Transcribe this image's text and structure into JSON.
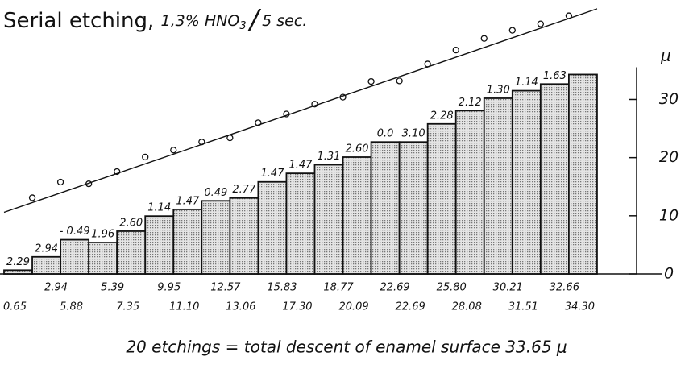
{
  "chart_data": {
    "type": "bar",
    "title": "Serial etching,",
    "title_formula": "1,3% HNO",
    "title_subscript": "3",
    "title_slash": "/",
    "title_time": "5 sec.",
    "y_axis_label": "μ",
    "caption": "20 etchings = total descent of enamel surface 33.65 μ",
    "xlim": [
      0,
      22.4
    ],
    "ylim": [
      0,
      46
    ],
    "yticks": [
      0,
      10,
      20,
      30
    ],
    "series": [
      {
        "name": "cumulative descent",
        "color": "#d0d0d0",
        "values": [
          0.65,
          2.94,
          5.88,
          5.39,
          7.35,
          9.95,
          11.1,
          12.57,
          13.06,
          15.83,
          17.3,
          18.77,
          20.09,
          22.69,
          22.69,
          25.8,
          28.08,
          30.21,
          31.51,
          32.66,
          34.3
        ],
        "value_labels": [
          "0.65",
          "2.94",
          "5.88",
          "5.39",
          "7.35",
          "9.95",
          "11.10",
          "12.57",
          "13.06",
          "15.83",
          "17.30",
          "18.77",
          "20.09",
          "22.69",
          "22.69",
          "25.80",
          "28.08",
          "30.21",
          "31.51",
          "32.66",
          "34.30"
        ]
      },
      {
        "name": "measurements",
        "type": "scatter",
        "color": "#111",
        "x": [
          1,
          2,
          3,
          4,
          5,
          6,
          7,
          8,
          9,
          10,
          11,
          12,
          13,
          14,
          15,
          16,
          17,
          18,
          19,
          20
        ],
        "values": [
          13.1,
          15.8,
          15.5,
          17.6,
          20.1,
          21.3,
          22.7,
          23.4,
          26,
          27.5,
          29.2,
          30.4,
          33.1,
          33.2,
          36.1,
          38.5,
          40.5,
          41.9,
          43,
          44.4
        ]
      },
      {
        "name": "fit",
        "type": "line",
        "color": "#111",
        "x": [
          0,
          21
        ],
        "values": [
          10.6,
          45.6
        ]
      }
    ],
    "step_labels": [
      "2.29",
      "2.94",
      "- 0.49",
      "1.96",
      "2.60",
      "1.14",
      "1.47",
      "0.49",
      "2.77",
      "1.47",
      "1.47",
      "1.31",
      "2.60",
      "0.0",
      "3.10",
      "2.28",
      "2.12",
      "1.30",
      "1.14",
      "1.63"
    ]
  }
}
